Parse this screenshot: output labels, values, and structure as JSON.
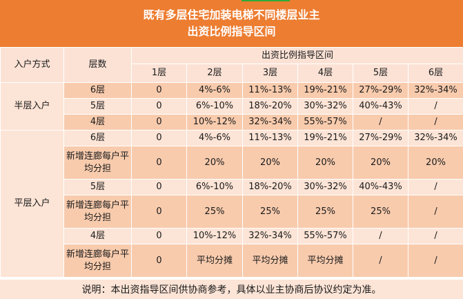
{
  "title": {
    "line1": "既有多层住宅加装电梯不同楼层业主",
    "line2": "出资比例指导区间"
  },
  "header": {
    "entry_label": "入户方式",
    "floors_label": "层数",
    "ratio_label": "出资比例指导区间",
    "floor_cols": [
      "1层",
      "2层",
      "3层",
      "4层",
      "5层",
      "6层"
    ]
  },
  "groups": [
    {
      "entry": "半层入户",
      "rows": [
        {
          "floor": "6层",
          "values": [
            "0",
            "4%-6%",
            "11%-13%",
            "19%-21%",
            "27%-29%",
            "32%-34%"
          ]
        },
        {
          "floor": "5层",
          "values": [
            "0",
            "6%-10%",
            "18%-20%",
            "30%-32%",
            "40%-43%",
            "/"
          ]
        },
        {
          "floor": "4层",
          "values": [
            "0",
            "10%-12%",
            "32%-34%",
            "55%-57%",
            "/",
            "/"
          ]
        }
      ]
    },
    {
      "entry": "平层入户",
      "rows": [
        {
          "floor": "6层",
          "values": [
            "0",
            "4%-6%",
            "11%-13%",
            "19%-21%",
            "27%-29%",
            "32%-34%"
          ]
        },
        {
          "floor": "新增连廊每户平均分担",
          "values": [
            "0",
            "20%",
            "20%",
            "20%",
            "20%",
            "20%"
          ]
        },
        {
          "floor": "5层",
          "values": [
            "0",
            "6%-10%",
            "18%-20%",
            "30%-32%",
            "40%-43%",
            "/"
          ]
        },
        {
          "floor": "新增连廊每户平均分担",
          "values": [
            "0",
            "25%",
            "25%",
            "25%",
            "25%",
            "/"
          ]
        },
        {
          "floor": "4层",
          "values": [
            "0",
            "10%-12%",
            "32%-34%",
            "55%-57%",
            "/",
            "/"
          ]
        },
        {
          "floor": "新增连廊每户平均分担",
          "values": [
            "0",
            "平均分摊",
            "平均分摊",
            "平均分摊",
            "/",
            "/"
          ]
        }
      ]
    }
  ],
  "note": "说明：本出资指导区间供协商参考，具体以业主协商后协议约定为准。",
  "colors": {
    "title_bg": "#ED7D31",
    "row_dark": "#F8CBAD",
    "row_light": "#FCE4D6",
    "header_bg": "#FBE2D5"
  }
}
